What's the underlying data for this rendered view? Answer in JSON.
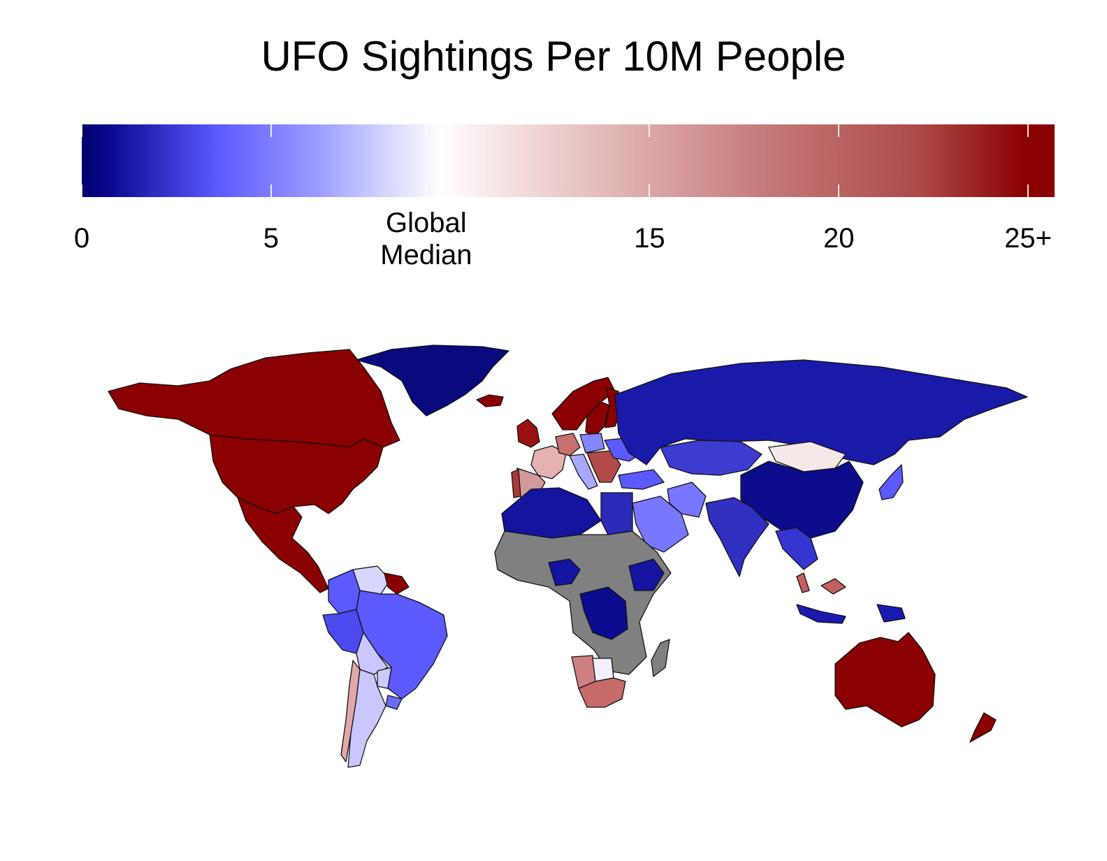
{
  "title": "UFO Sightings Per 10M People",
  "legend": {
    "ticks": [
      {
        "value": 0,
        "label": "0"
      },
      {
        "value": 5,
        "label": "5"
      },
      {
        "value": 15,
        "label": "15"
      },
      {
        "value": 20,
        "label": "20"
      },
      {
        "value": 25,
        "label": "25+"
      }
    ],
    "median": {
      "value": 9.1,
      "line1": "Global",
      "line2": "Median"
    },
    "range": [
      0,
      25.7
    ],
    "colors": {
      "low": "#00006e",
      "mid_low": "#5a5aff",
      "median": "#ffffff",
      "high": "#8b0000",
      "no_data": "#808080"
    }
  },
  "map_data": {
    "type": "choropleth",
    "regions": [
      {
        "name": "Canada",
        "value": 25,
        "color": "#8b0000"
      },
      {
        "name": "United States",
        "value": 25,
        "color": "#8b0000"
      },
      {
        "name": "Mexico",
        "value": 25,
        "color": "#8b0000"
      },
      {
        "name": "Greenland",
        "value": 0,
        "color": "#0a0a7e"
      },
      {
        "name": "Iceland",
        "value": 25,
        "color": "#8b0000"
      },
      {
        "name": "United Kingdom",
        "value": 25,
        "color": "#9b1111"
      },
      {
        "name": "Norway",
        "value": 25,
        "color": "#8b0000"
      },
      {
        "name": "Sweden",
        "value": 25,
        "color": "#8b0000"
      },
      {
        "name": "Finland",
        "value": 25,
        "color": "#8b0000"
      },
      {
        "name": "France",
        "value": 11,
        "color": "#e4b2b2"
      },
      {
        "name": "Spain",
        "value": 13,
        "color": "#d39a9a"
      },
      {
        "name": "Portugal",
        "value": 22,
        "color": "#a83a3a"
      },
      {
        "name": "Germany",
        "value": 17,
        "color": "#c77070"
      },
      {
        "name": "Poland",
        "value": 6,
        "color": "#8585ff"
      },
      {
        "name": "Italy",
        "value": 7,
        "color": "#a8a8ff"
      },
      {
        "name": "Balkans",
        "value": 20,
        "color": "#b24a4a"
      },
      {
        "name": "Ukraine",
        "value": 4,
        "color": "#5a5aff"
      },
      {
        "name": "Turkey",
        "value": 4,
        "color": "#5a5aff"
      },
      {
        "name": "Russia",
        "value": 1,
        "color": "#1a1aa8"
      },
      {
        "name": "Kazakhstan",
        "value": 3,
        "color": "#3c3cd0"
      },
      {
        "name": "Mongolia",
        "value": 10,
        "color": "#f6e8e8"
      },
      {
        "name": "China",
        "value": 0,
        "color": "#0c0c8c"
      },
      {
        "name": "Japan",
        "value": 4,
        "color": "#5a5aff"
      },
      {
        "name": "India",
        "value": 2,
        "color": "#2f2fc0"
      },
      {
        "name": "Iran",
        "value": 6,
        "color": "#7777ff"
      },
      {
        "name": "Saudi Arabia",
        "value": 6,
        "color": "#7777ff"
      },
      {
        "name": "Southeast Asia",
        "value": 3,
        "color": "#3535d0"
      },
      {
        "name": "Indonesia",
        "value": 1,
        "color": "#1a1ab0"
      },
      {
        "name": "Malaysia",
        "value": 16,
        "color": "#c46060"
      },
      {
        "name": "Australia",
        "value": 25,
        "color": "#8b0000"
      },
      {
        "name": "New Zealand",
        "value": 25,
        "color": "#8b0000"
      },
      {
        "name": "North Africa",
        "value": 1,
        "color": "#14149e"
      },
      {
        "name": "Egypt",
        "value": 2,
        "color": "#2a2ab8"
      },
      {
        "name": "Central Africa",
        "value": null,
        "color": "#808080"
      },
      {
        "name": "Nigeria",
        "value": 1,
        "color": "#14149e"
      },
      {
        "name": "Ethiopia",
        "value": 1,
        "color": "#14149e"
      },
      {
        "name": "DR Congo",
        "value": 1,
        "color": "#0c0c90"
      },
      {
        "name": "Namibia",
        "value": 15,
        "color": "#d08080"
      },
      {
        "name": "Botswana",
        "value": 9,
        "color": "#f0f0ff"
      },
      {
        "name": "South Africa",
        "value": 16,
        "color": "#c76a6a"
      },
      {
        "name": "Madagascar",
        "value": null,
        "color": "#808080"
      },
      {
        "name": "Venezuela",
        "value": 8,
        "color": "#d6d6ff"
      },
      {
        "name": "Guyana",
        "value": 25,
        "color": "#8b0000"
      },
      {
        "name": "Colombia",
        "value": 4,
        "color": "#5a5aff"
      },
      {
        "name": "Peru",
        "value": 4,
        "color": "#4a4af0"
      },
      {
        "name": "Brazil",
        "value": 4,
        "color": "#5a5aff"
      },
      {
        "name": "Bolivia",
        "value": 8,
        "color": "#c8c8ff"
      },
      {
        "name": "Chile",
        "value": 12,
        "color": "#e2a8a8"
      },
      {
        "name": "Argentina",
        "value": 8,
        "color": "#c8c8ff"
      },
      {
        "name": "Paraguay",
        "value": 8,
        "color": "#cacaff"
      },
      {
        "name": "Uruguay",
        "value": 5,
        "color": "#6a6aff"
      }
    ]
  }
}
